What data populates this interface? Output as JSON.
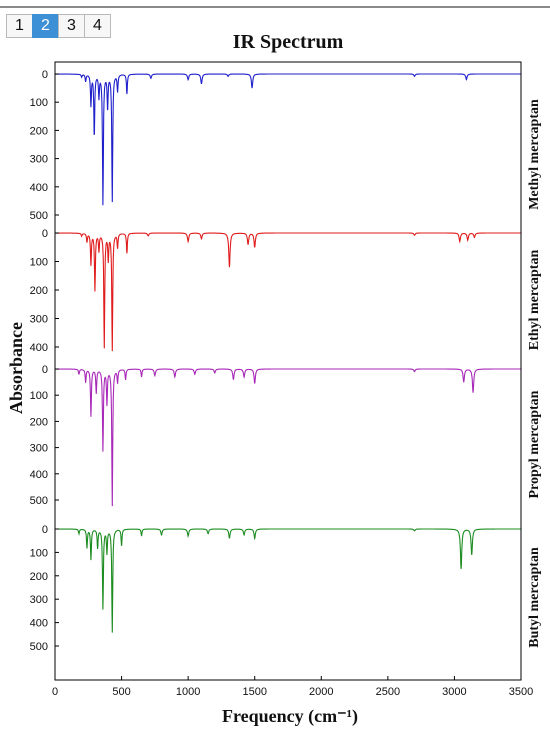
{
  "tabs": [
    {
      "label": "1",
      "active": false
    },
    {
      "label": "2",
      "active": true
    },
    {
      "label": "3",
      "active": false
    },
    {
      "label": "4",
      "active": false
    }
  ],
  "chart_data": {
    "type": "line",
    "title": "IR Spectrum",
    "xlabel": "Frequency (cm⁻¹)",
    "ylabel": "Absorbance",
    "xlim": [
      0,
      3500
    ],
    "xticks": [
      0,
      500,
      1000,
      1500,
      2000,
      2500,
      3000,
      3500
    ],
    "y_inverted": true,
    "grid": false,
    "series": [
      {
        "name": "Methyl mercaptan",
        "color": "#1f1fcc",
        "ylim": [
          0,
          500
        ],
        "yticks": [
          0,
          100,
          200,
          300,
          400,
          500
        ],
        "peaks": [
          {
            "x": 200,
            "y": 10
          },
          {
            "x": 230,
            "y": 25
          },
          {
            "x": 270,
            "y": 110
          },
          {
            "x": 295,
            "y": 220
          },
          {
            "x": 330,
            "y": 80
          },
          {
            "x": 360,
            "y": 460
          },
          {
            "x": 395,
            "y": 120
          },
          {
            "x": 430,
            "y": 450
          },
          {
            "x": 470,
            "y": 60
          },
          {
            "x": 540,
            "y": 70
          },
          {
            "x": 720,
            "y": 15
          },
          {
            "x": 1000,
            "y": 20
          },
          {
            "x": 1100,
            "y": 35
          },
          {
            "x": 1300,
            "y": 8
          },
          {
            "x": 1480,
            "y": 50
          },
          {
            "x": 2700,
            "y": 8
          },
          {
            "x": 3090,
            "y": 20
          }
        ]
      },
      {
        "name": "Ethyl mercaptan",
        "color": "#e01b1b",
        "ylim": [
          0,
          400
        ],
        "yticks": [
          0,
          100,
          200,
          300,
          400
        ],
        "peaks": [
          {
            "x": 200,
            "y": 10
          },
          {
            "x": 240,
            "y": 30
          },
          {
            "x": 270,
            "y": 110
          },
          {
            "x": 300,
            "y": 200
          },
          {
            "x": 330,
            "y": 60
          },
          {
            "x": 370,
            "y": 400
          },
          {
            "x": 400,
            "y": 90
          },
          {
            "x": 430,
            "y": 410
          },
          {
            "x": 470,
            "y": 50
          },
          {
            "x": 540,
            "y": 70
          },
          {
            "x": 700,
            "y": 10
          },
          {
            "x": 1000,
            "y": 30
          },
          {
            "x": 1100,
            "y": 20
          },
          {
            "x": 1310,
            "y": 120
          },
          {
            "x": 1450,
            "y": 40
          },
          {
            "x": 1500,
            "y": 50
          },
          {
            "x": 2700,
            "y": 8
          },
          {
            "x": 3040,
            "y": 30
          },
          {
            "x": 3100,
            "y": 25
          },
          {
            "x": 3150,
            "y": 15
          }
        ]
      },
      {
        "name": "Propyl mercaptan",
        "color": "#a828b8",
        "ylim": [
          0,
          500
        ],
        "yticks": [
          0,
          100,
          200,
          300,
          400,
          500
        ],
        "peaks": [
          {
            "x": 180,
            "y": 20
          },
          {
            "x": 230,
            "y": 50
          },
          {
            "x": 270,
            "y": 180
          },
          {
            "x": 310,
            "y": 90
          },
          {
            "x": 360,
            "y": 310
          },
          {
            "x": 390,
            "y": 130
          },
          {
            "x": 430,
            "y": 520
          },
          {
            "x": 470,
            "y": 50
          },
          {
            "x": 530,
            "y": 40
          },
          {
            "x": 650,
            "y": 30
          },
          {
            "x": 750,
            "y": 25
          },
          {
            "x": 900,
            "y": 30
          },
          {
            "x": 1050,
            "y": 20
          },
          {
            "x": 1200,
            "y": 15
          },
          {
            "x": 1340,
            "y": 40
          },
          {
            "x": 1420,
            "y": 30
          },
          {
            "x": 1500,
            "y": 55
          },
          {
            "x": 2700,
            "y": 10
          },
          {
            "x": 3070,
            "y": 50
          },
          {
            "x": 3140,
            "y": 90
          }
        ]
      },
      {
        "name": "Butyl mercaptan",
        "color": "#1c8c20",
        "ylim": [
          0,
          500
        ],
        "yticks": [
          0,
          100,
          200,
          300,
          400,
          500
        ],
        "peaks": [
          {
            "x": 180,
            "y": 20
          },
          {
            "x": 240,
            "y": 80
          },
          {
            "x": 270,
            "y": 130
          },
          {
            "x": 320,
            "y": 80
          },
          {
            "x": 360,
            "y": 340
          },
          {
            "x": 390,
            "y": 100
          },
          {
            "x": 430,
            "y": 440
          },
          {
            "x": 500,
            "y": 70
          },
          {
            "x": 650,
            "y": 30
          },
          {
            "x": 800,
            "y": 25
          },
          {
            "x": 1000,
            "y": 30
          },
          {
            "x": 1150,
            "y": 20
          },
          {
            "x": 1310,
            "y": 40
          },
          {
            "x": 1420,
            "y": 25
          },
          {
            "x": 1500,
            "y": 40
          },
          {
            "x": 2700,
            "y": 8
          },
          {
            "x": 3050,
            "y": 170
          },
          {
            "x": 3130,
            "y": 110
          }
        ]
      }
    ]
  }
}
